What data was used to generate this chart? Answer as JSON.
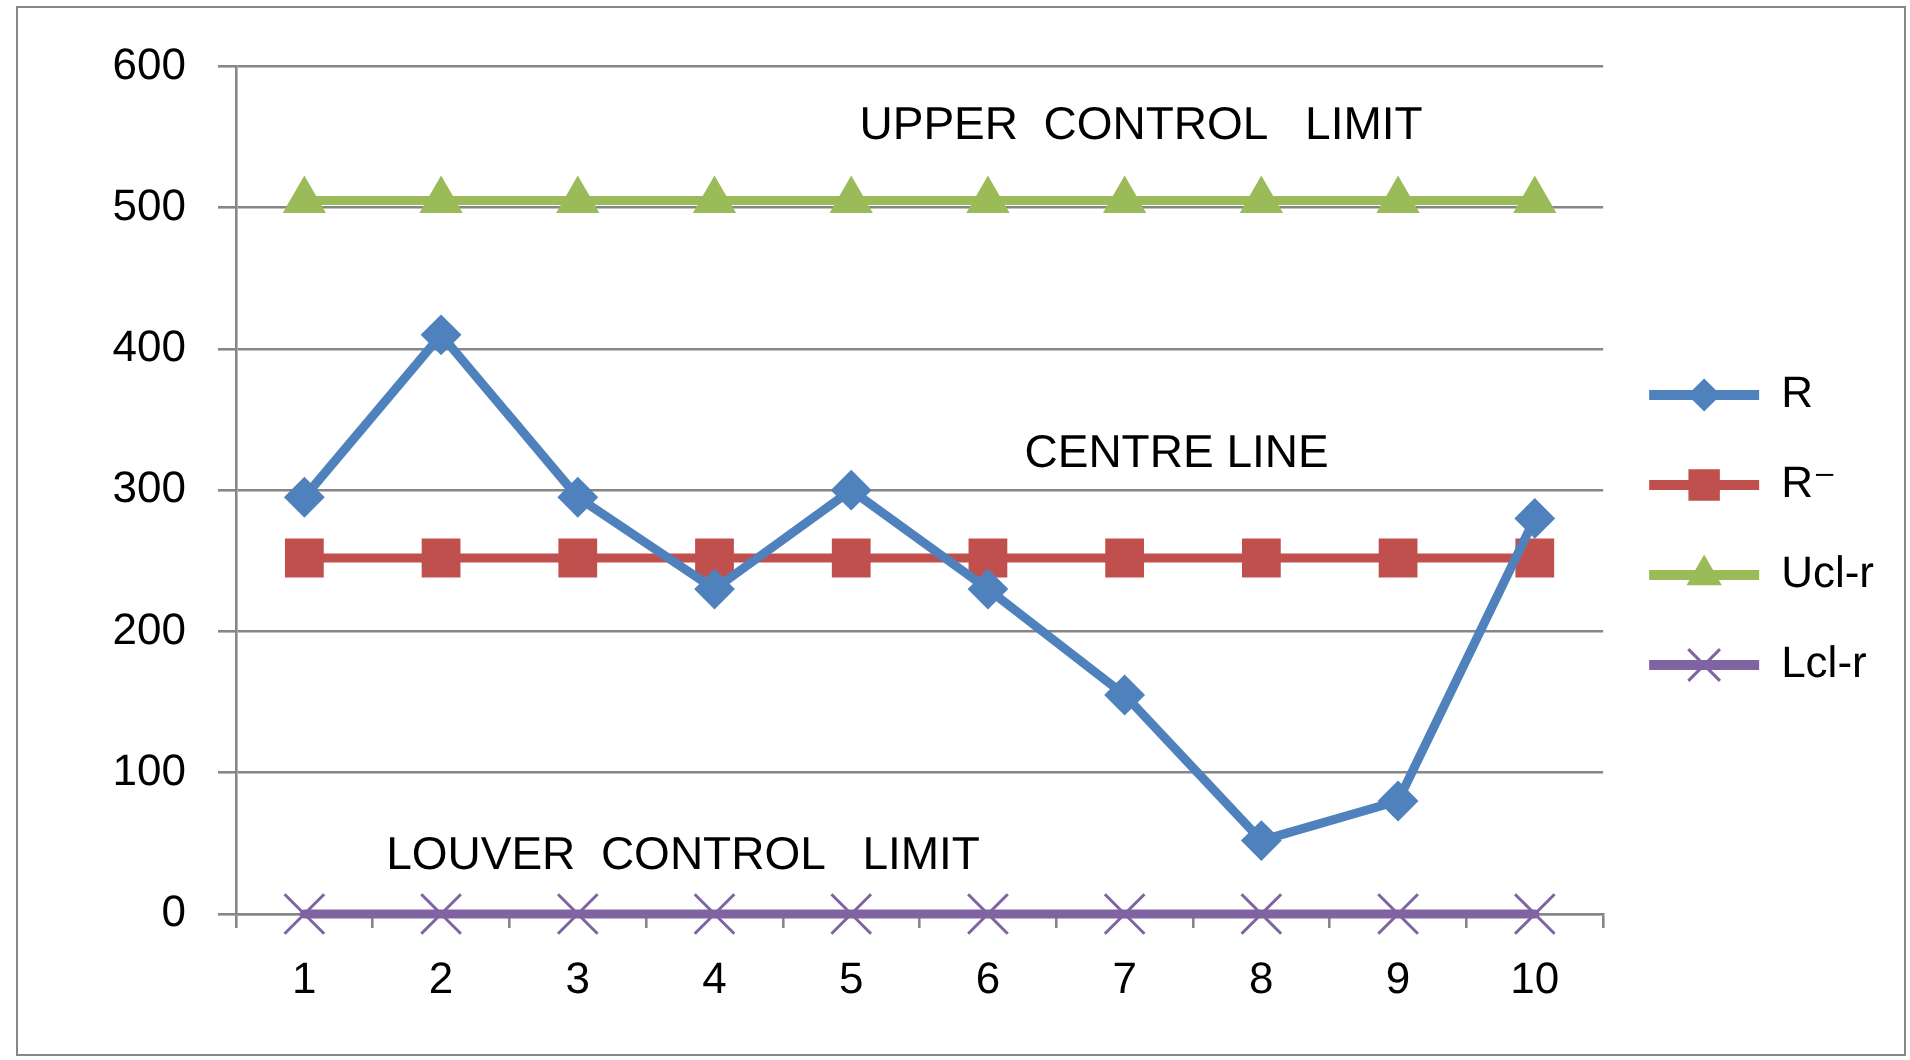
{
  "chart_data": {
    "type": "line",
    "categories": [
      "1",
      "2",
      "3",
      "4",
      "5",
      "6",
      "7",
      "8",
      "9",
      "10"
    ],
    "series": [
      {
        "name": "R",
        "color": "#4f81bd",
        "marker": "diamond",
        "values": [
          295,
          410,
          295,
          230,
          300,
          230,
          155,
          52,
          80,
          280
        ]
      },
      {
        "name": "R⁻",
        "color": "#c0504d",
        "marker": "square",
        "values": [
          252,
          252,
          252,
          252,
          252,
          252,
          252,
          252,
          252,
          252
        ]
      },
      {
        "name": "Ucl-r",
        "color": "#9bbb59",
        "marker": "triangle",
        "values": [
          505,
          505,
          505,
          505,
          505,
          505,
          505,
          505,
          505,
          505
        ]
      },
      {
        "name": "Lcl-r",
        "color": "#8064a2",
        "marker": "cross",
        "values": [
          0,
          0,
          0,
          0,
          0,
          0,
          0,
          0,
          0,
          0
        ]
      }
    ],
    "ylim": [
      0,
      600
    ],
    "yticks": [
      0,
      100,
      200,
      300,
      400,
      500,
      600
    ],
    "grid": "y",
    "legend": "right",
    "line_style": "solid",
    "annotations": [
      "UPPER  CONTROL   LIMIT",
      "CENTRE LINE",
      "LOUVER  CONTROL   LIMIT"
    ]
  }
}
